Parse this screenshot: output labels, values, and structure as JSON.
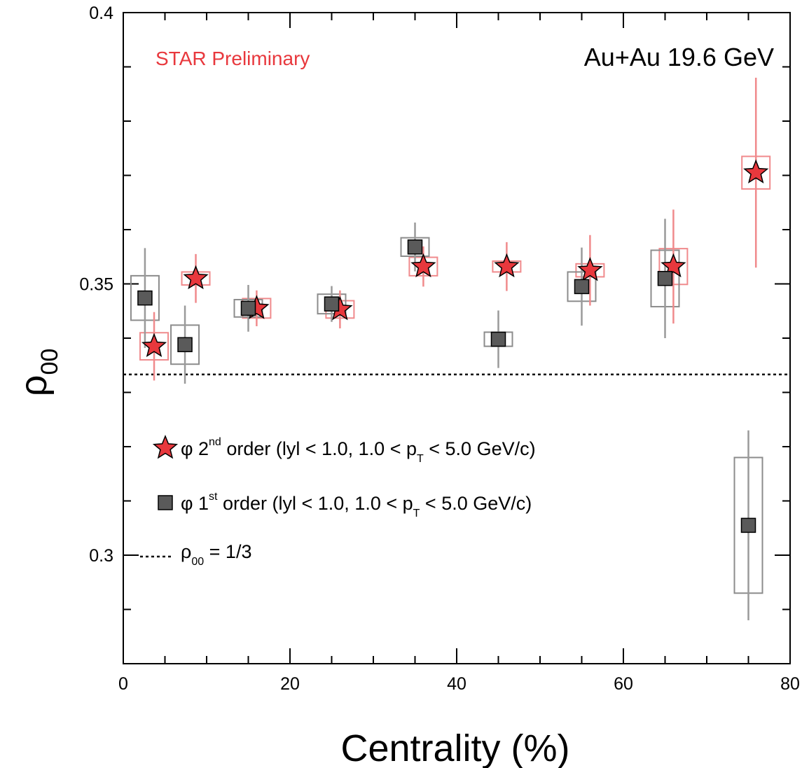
{
  "chart_data": {
    "type": "scatter",
    "annotation_preliminary": "STAR Preliminary",
    "annotation_system": "Au+Au 19.6 GeV",
    "xlabel": "Centrality (%)",
    "ylabel": {
      "base": "ρ",
      "sub": "00"
    },
    "xlim": [
      0,
      80
    ],
    "ylim": [
      0.28,
      0.4
    ],
    "x_ticks": [
      "0",
      "20",
      "40",
      "60",
      "80"
    ],
    "y_ticks": [
      "0.3",
      "0.35",
      "0.4"
    ],
    "reference_line": {
      "y": 0.3333,
      "style": "dotted"
    },
    "legend": {
      "placement": "bottom-left",
      "items": [
        {
          "marker": "star",
          "pre": "φ 2",
          "sup": "nd",
          "mid": " order (lyl < 1.0, 1.0 < p",
          "sub": "T",
          "post": " < 5.0 GeV/c)"
        },
        {
          "marker": "square",
          "pre": "φ 1",
          "sup": "st",
          "mid": " order (lyl < 1.0, 1.0 < p",
          "sub": "T",
          "post": " < 5.0 GeV/c)"
        },
        {
          "marker": "dotted-line",
          "pre": "ρ",
          "sub": "00",
          "post": " = 1/3"
        }
      ]
    },
    "series": [
      {
        "id": "second-order",
        "marker": "star",
        "color": "#e8383d",
        "points": [
          {
            "x": 3.7,
            "y": 0.3385,
            "err": 0.0063,
            "sys": 0.0025
          },
          {
            "x": 8.7,
            "y": 0.351,
            "err": 0.0045,
            "sys": 0.0012
          },
          {
            "x": 16.0,
            "y": 0.3455,
            "err": 0.0033,
            "sys": 0.0018
          },
          {
            "x": 26.0,
            "y": 0.3453,
            "err": 0.0035,
            "sys": 0.0016
          },
          {
            "x": 36.0,
            "y": 0.3532,
            "err": 0.0037,
            "sys": 0.0017
          },
          {
            "x": 46.0,
            "y": 0.3532,
            "err": 0.0045,
            "sys": 0.001
          },
          {
            "x": 56.0,
            "y": 0.3525,
            "err": 0.0065,
            "sys": 0.0012
          },
          {
            "x": 66.0,
            "y": 0.3532,
            "err": 0.0105,
            "sys": 0.0033
          },
          {
            "x": 75.9,
            "y": 0.3705,
            "err": 0.0175,
            "sys": 0.003
          }
        ]
      },
      {
        "id": "first-order",
        "marker": "square",
        "color": "#5a5a5a",
        "points": [
          {
            "x": 2.6,
            "y": 0.3474,
            "err": 0.0092,
            "sys": 0.0041
          },
          {
            "x": 7.4,
            "y": 0.3388,
            "err": 0.0072,
            "sys": 0.0036
          },
          {
            "x": 15.0,
            "y": 0.3455,
            "err": 0.0043,
            "sys": 0.0016
          },
          {
            "x": 25.0,
            "y": 0.3463,
            "err": 0.0033,
            "sys": 0.0018
          },
          {
            "x": 35.0,
            "y": 0.3568,
            "err": 0.0045,
            "sys": 0.0017
          },
          {
            "x": 45.0,
            "y": 0.3398,
            "err": 0.0053,
            "sys": 0.0013
          },
          {
            "x": 55.0,
            "y": 0.3495,
            "err": 0.0072,
            "sys": 0.0027
          },
          {
            "x": 65.0,
            "y": 0.351,
            "err": 0.011,
            "sys": 0.0052
          },
          {
            "x": 75.0,
            "y": 0.3055,
            "err": 0.0175,
            "sys": 0.0125
          }
        ]
      }
    ]
  }
}
